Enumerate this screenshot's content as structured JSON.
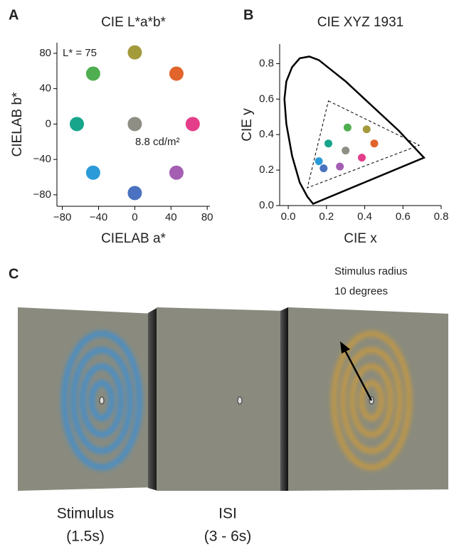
{
  "panel_labels": [
    "A",
    "B",
    "C"
  ],
  "chart_data": [
    {
      "type": "scatter",
      "title": "CIE L*a*b*",
      "x_label": "CIELAB a*",
      "y_label": "CIELAB b*",
      "annotations": [
        "L* = 75",
        "8.8 cd/m²"
      ],
      "x": [
        0,
        46,
        64,
        46,
        0,
        -46,
        -64,
        -46,
        0
      ],
      "y": [
        81,
        57,
        0,
        -55,
        -78,
        -55,
        0,
        57,
        0
      ],
      "colors": [
        "#a39a3c",
        "#e0642b",
        "#e43d8a",
        "#a45fb3",
        "#4a72c0",
        "#2b9ad8",
        "#17a58b",
        "#4fae50",
        "#8e8e85"
      ],
      "xlim": [
        -86,
        83
      ],
      "ylim": [
        -93,
        92
      ],
      "xticks": [
        {
          "value": -80,
          "label": "−80"
        },
        {
          "value": -40,
          "label": "−40"
        },
        0,
        40,
        80
      ],
      "yticks": [
        80,
        40,
        0,
        {
          "value": -40,
          "label": "−40"
        },
        {
          "value": -80,
          "label": "−80"
        }
      ]
    },
    {
      "type": "scatter",
      "title": "CIE XYZ 1931",
      "x_label": "CIE x",
      "y_label": "CIE y",
      "x": [
        0.31,
        0.41,
        0.45,
        0.385,
        0.3,
        0.21,
        0.16,
        0.185,
        0.27
      ],
      "y": [
        0.44,
        0.43,
        0.35,
        0.27,
        0.31,
        0.35,
        0.25,
        0.21,
        0.22
      ],
      "colors": [
        "#4fae50",
        "#a39a3c",
        "#e0642b",
        "#e43d8a",
        "#8e8e85",
        "#17a58b",
        "#2b9ad8",
        "#4a72c0",
        "#a45fb3"
      ],
      "shapes": [
        {
          "style": "solid",
          "x": [
            0.13,
            0.1,
            0.06,
            0.02,
            -0.01,
            -0.02,
            -0.01,
            0.02,
            0.06,
            0.11,
            0.16,
            0.23,
            0.3,
            0.37,
            0.44,
            0.51,
            0.58,
            0.64,
            0.71
          ],
          "y": [
            0.01,
            0.05,
            0.13,
            0.28,
            0.46,
            0.6,
            0.7,
            0.78,
            0.83,
            0.84,
            0.82,
            0.76,
            0.7,
            0.63,
            0.56,
            0.49,
            0.42,
            0.35,
            0.27
          ]
        },
        {
          "style": "dashed",
          "x": [
            0.21,
            0.685,
            0.1
          ],
          "y": [
            0.59,
            0.34,
            0.1
          ]
        }
      ],
      "xlim": [
        -0.045,
        0.8
      ],
      "ylim": [
        0,
        0.91
      ],
      "xticks": [
        {
          "value": 0,
          "label": "0.0"
        },
        0.2,
        0.4,
        0.6,
        0.8
      ],
      "yticks": [
        {
          "value": 0,
          "label": "0.0"
        },
        0.2,
        0.4,
        0.6,
        0.8
      ]
    }
  ],
  "stimulus_panel": {
    "radius_note": [
      "Stimulus radius",
      "10 degrees"
    ],
    "frames": [
      {
        "label": "Stimulus",
        "duration": "(1.5s)"
      },
      {
        "label": "ISI",
        "duration": "(3 - 6s)"
      }
    ]
  }
}
